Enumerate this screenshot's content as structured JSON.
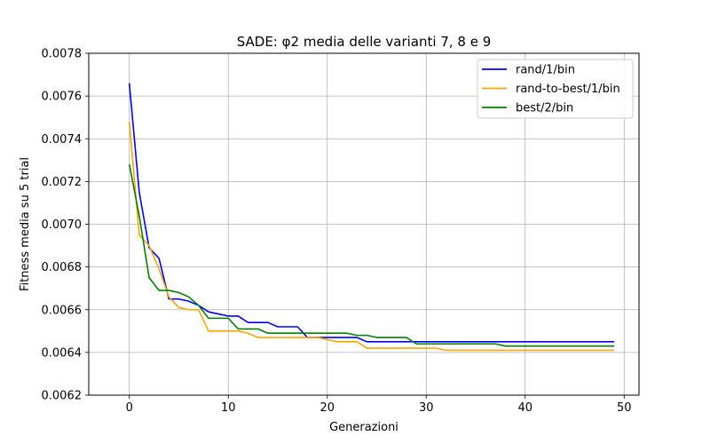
{
  "chart_data": {
    "type": "line",
    "title": "SADE: φ2 media delle varianti 7, 8 e 9",
    "xlabel": "Generazioni",
    "ylabel": "Fitness media su 5 trial",
    "xlim": [
      -4.1,
      51.5
    ],
    "ylim": [
      0.0062,
      0.0078
    ],
    "xticks": [
      0,
      10,
      20,
      30,
      40,
      50
    ],
    "xtick_labels": [
      "0",
      "10",
      "20",
      "30",
      "40",
      "50"
    ],
    "yticks": [
      0.0062,
      0.0064,
      0.0066,
      0.0068,
      0.007,
      0.0072,
      0.0074,
      0.0076,
      0.0078
    ],
    "ytick_labels": [
      "0.0062",
      "0.0064",
      "0.0066",
      "0.0068",
      "0.0070",
      "0.0072",
      "0.0074",
      "0.0076",
      "0.0078"
    ],
    "grid": true,
    "legend_position": "top-right",
    "x": [
      0,
      1,
      2,
      3,
      4,
      5,
      6,
      7,
      8,
      9,
      10,
      11,
      12,
      13,
      14,
      15,
      16,
      17,
      18,
      19,
      20,
      21,
      22,
      23,
      24,
      25,
      26,
      27,
      28,
      29,
      30,
      31,
      32,
      33,
      34,
      35,
      36,
      37,
      38,
      39,
      40,
      41,
      42,
      43,
      44,
      45,
      46,
      47,
      48,
      49
    ],
    "series": [
      {
        "name": "rand/1/bin",
        "color": "#0000ff",
        "values": [
          0.00766,
          0.00715,
          0.00689,
          0.00684,
          0.00665,
          0.00665,
          0.00664,
          0.00662,
          0.00659,
          0.00658,
          0.00657,
          0.00657,
          0.00654,
          0.00654,
          0.00654,
          0.00652,
          0.00652,
          0.00652,
          0.00647,
          0.00647,
          0.00647,
          0.00647,
          0.00647,
          0.00647,
          0.00645,
          0.00645,
          0.00645,
          0.00645,
          0.00645,
          0.00645,
          0.00645,
          0.00645,
          0.00645,
          0.00645,
          0.00645,
          0.00645,
          0.00645,
          0.00645,
          0.00645,
          0.00645,
          0.00645,
          0.00645,
          0.00645,
          0.00645,
          0.00645,
          0.00645,
          0.00645,
          0.00645,
          0.00645,
          0.00645
        ]
      },
      {
        "name": "rand-to-best/1/bin",
        "color": "#ffa500",
        "values": [
          0.00748,
          0.00695,
          0.0069,
          0.00679,
          0.00666,
          0.00661,
          0.0066,
          0.0066,
          0.0065,
          0.0065,
          0.0065,
          0.0065,
          0.00649,
          0.00647,
          0.00647,
          0.00647,
          0.00647,
          0.00647,
          0.00647,
          0.00647,
          0.00646,
          0.00645,
          0.00645,
          0.00645,
          0.00642,
          0.00642,
          0.00642,
          0.00642,
          0.00642,
          0.00642,
          0.00642,
          0.00642,
          0.00641,
          0.00641,
          0.00641,
          0.00641,
          0.00641,
          0.00641,
          0.00641,
          0.00641,
          0.00641,
          0.00641,
          0.00641,
          0.00641,
          0.00641,
          0.00641,
          0.00641,
          0.00641,
          0.00641,
          0.00641
        ]
      },
      {
        "name": "best/2/bin",
        "color": "#008000",
        "values": [
          0.00728,
          0.00704,
          0.00675,
          0.00669,
          0.00669,
          0.00668,
          0.00666,
          0.00662,
          0.00656,
          0.00656,
          0.00656,
          0.00651,
          0.00651,
          0.00651,
          0.00649,
          0.00649,
          0.00649,
          0.00649,
          0.00649,
          0.00649,
          0.00649,
          0.00649,
          0.00649,
          0.00648,
          0.00648,
          0.00647,
          0.00647,
          0.00647,
          0.00647,
          0.00644,
          0.00644,
          0.00644,
          0.00644,
          0.00644,
          0.00644,
          0.00644,
          0.00644,
          0.00644,
          0.00643,
          0.00643,
          0.00643,
          0.00643,
          0.00643,
          0.00643,
          0.00643,
          0.00643,
          0.00643,
          0.00643,
          0.00643,
          0.00643
        ]
      }
    ]
  }
}
